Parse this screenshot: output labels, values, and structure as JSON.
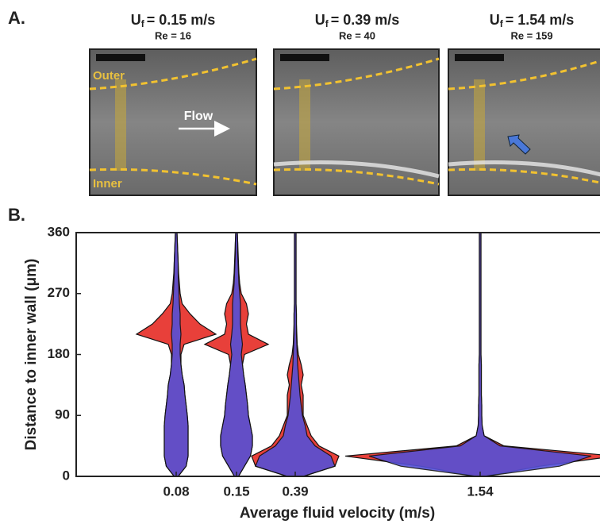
{
  "panel_a": {
    "label": "A.",
    "panels": [
      {
        "symbol": "U",
        "subscript": "f",
        "value_text": "= 0.15 m/s",
        "re": "Re = 16"
      },
      {
        "symbol": "U",
        "subscript": "f",
        "value_text": "= 0.39 m/s",
        "re": "Re = 40"
      },
      {
        "symbol": "U",
        "subscript": "f",
        "value_text": "= 1.54 m/s",
        "re": "Re = 159"
      }
    ],
    "outer_label": "Outer",
    "inner_label": "Inner",
    "flow_label": "Flow"
  },
  "chart_data": {
    "type": "violin",
    "panel_label": "B.",
    "xlabel": "Average fluid velocity (m/s)",
    "ylabel": "Distance to inner wall (μm)",
    "categories": [
      "0.08",
      "0.15",
      "0.39",
      "1.54"
    ],
    "ylim": [
      0,
      360
    ],
    "yticks": [
      0,
      90,
      180,
      270,
      360
    ],
    "density_y": [
      0,
      15,
      30,
      45,
      60,
      75,
      90,
      105,
      120,
      135,
      150,
      165,
      180,
      195,
      210,
      225,
      240,
      255,
      270,
      285,
      300,
      315,
      330,
      345,
      360
    ],
    "series": [
      {
        "color": "#e8403a",
        "densities": [
          [
            0.05,
            0.25,
            0.3,
            0.3,
            0.3,
            0.3,
            0.28,
            0.25,
            0.22,
            0.2,
            0.15,
            0.12,
            0.12,
            0.2,
            1.0,
            0.6,
            0.35,
            0.15,
            0.1,
            0.08,
            0.06,
            0.05,
            0.04,
            0.03,
            0.02
          ],
          [
            0.05,
            0.2,
            0.35,
            0.4,
            0.4,
            0.35,
            0.3,
            0.28,
            0.25,
            0.22,
            0.18,
            0.15,
            0.2,
            0.8,
            0.3,
            0.25,
            0.3,
            0.25,
            0.12,
            0.08,
            0.06,
            0.05,
            0.04,
            0.03,
            0.02
          ],
          [
            0.2,
            1.0,
            1.1,
            0.6,
            0.4,
            0.3,
            0.2,
            0.2,
            0.2,
            0.15,
            0.2,
            0.15,
            0.08,
            0.05,
            0.04,
            0.03,
            0.03,
            0.02,
            0.02,
            0.02,
            0.02,
            0.02,
            0.02,
            0.02,
            0.02
          ],
          [
            0.1,
            1.5,
            3.4,
            0.6,
            0.1,
            0.05,
            0.04,
            0.04,
            0.03,
            0.03,
            0.03,
            0.03,
            0.02,
            0.02,
            0.02,
            0.02,
            0.02,
            0.02,
            0.02,
            0.02,
            0.02,
            0.02,
            0.02,
            0.02,
            0.02
          ]
        ]
      },
      {
        "color": "#5550d6",
        "densities": [
          [
            0.05,
            0.25,
            0.3,
            0.3,
            0.3,
            0.3,
            0.28,
            0.25,
            0.22,
            0.2,
            0.15,
            0.12,
            0.1,
            0.1,
            0.12,
            0.1,
            0.1,
            0.08,
            0.07,
            0.06,
            0.05,
            0.05,
            0.04,
            0.03,
            0.02
          ],
          [
            0.05,
            0.2,
            0.35,
            0.4,
            0.4,
            0.35,
            0.3,
            0.28,
            0.25,
            0.22,
            0.18,
            0.15,
            0.12,
            0.15,
            0.12,
            0.1,
            0.1,
            0.1,
            0.08,
            0.06,
            0.05,
            0.04,
            0.03,
            0.03,
            0.02
          ],
          [
            0.2,
            1.0,
            0.9,
            0.5,
            0.3,
            0.25,
            0.18,
            0.15,
            0.12,
            0.1,
            0.08,
            0.06,
            0.05,
            0.04,
            0.03,
            0.03,
            0.03,
            0.02,
            0.02,
            0.02,
            0.02,
            0.02,
            0.02,
            0.02,
            0.02
          ],
          [
            0.1,
            2.0,
            2.8,
            0.5,
            0.1,
            0.05,
            0.04,
            0.04,
            0.03,
            0.03,
            0.03,
            0.03,
            0.02,
            0.02,
            0.02,
            0.02,
            0.02,
            0.02,
            0.02,
            0.02,
            0.02,
            0.02,
            0.02,
            0.02,
            0.02
          ]
        ]
      }
    ]
  }
}
